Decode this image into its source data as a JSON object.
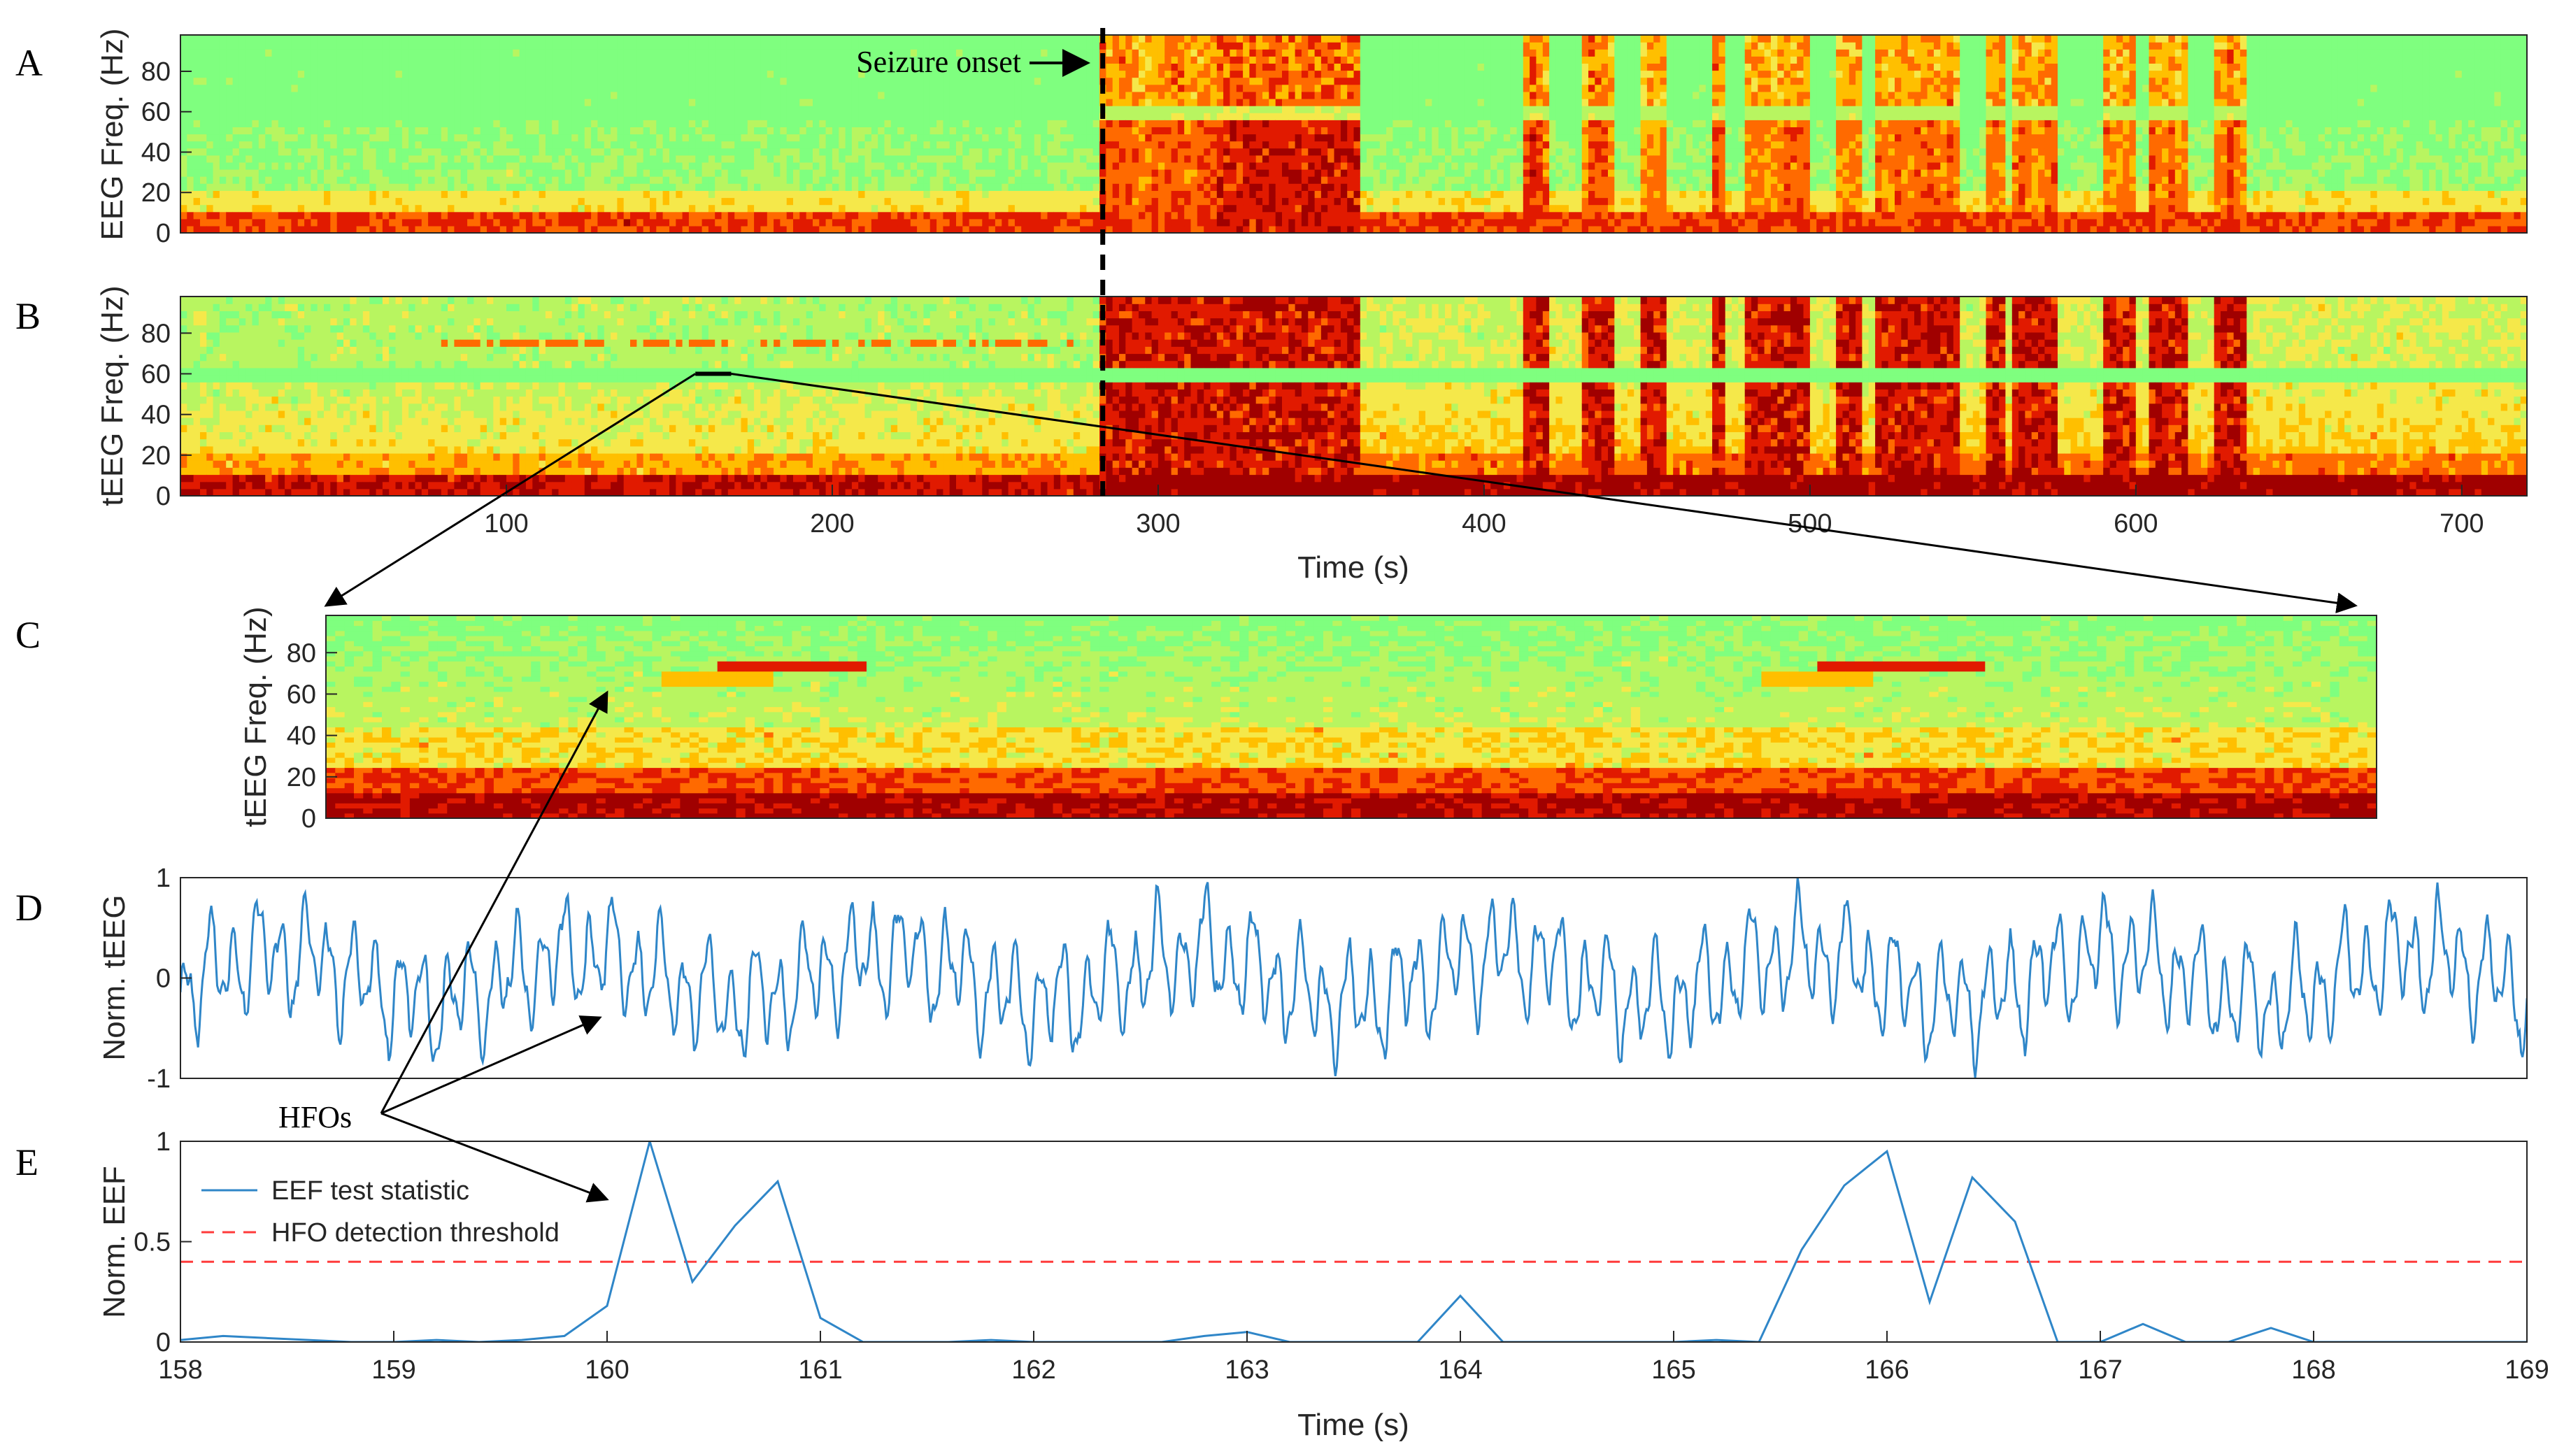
{
  "chart_data": [
    {
      "panel": "A",
      "type": "heatmap",
      "ylabel": "EEG Freq. (Hz)",
      "xlim": [
        0,
        720
      ],
      "ylim": [
        0,
        98
      ],
      "yticks": [
        "0",
        "20",
        "40",
        "60",
        "80"
      ],
      "ytick_values": [
        0,
        20,
        40,
        60,
        80
      ],
      "colormap": [
        "#7fff7f",
        "#b8f560",
        "#f5e84a",
        "#ffbf00",
        "#ff6a00",
        "#e11a00",
        "#a00000"
      ],
      "grid": false
    },
    {
      "panel": "B",
      "type": "heatmap",
      "ylabel": "tEEG Freq. (Hz)",
      "xlabel": "Time (s)",
      "xlim": [
        0,
        720
      ],
      "ylim": [
        0,
        98
      ],
      "xticks": [
        "100",
        "200",
        "300",
        "400",
        "500",
        "600",
        "700"
      ],
      "xtick_values": [
        100,
        200,
        300,
        400,
        500,
        600,
        700
      ],
      "yticks": [
        "0",
        "20",
        "40",
        "60",
        "80"
      ],
      "ytick_values": [
        0,
        20,
        40,
        60,
        80
      ],
      "seizure_onset_s": 283,
      "zoom_window_s": [
        158,
        169
      ],
      "grid": false
    },
    {
      "panel": "C",
      "type": "heatmap",
      "ylabel": "tEEG Freq. (Hz)",
      "xlim": [
        158,
        169
      ],
      "ylim": [
        0,
        98
      ],
      "yticks": [
        "0",
        "20",
        "40",
        "60",
        "80"
      ],
      "ytick_values": [
        0,
        20,
        40,
        60,
        80
      ],
      "hfo_bands": [
        {
          "t_start": 160.1,
          "t_end": 160.9,
          "freq_hz": 74
        },
        {
          "t_start": 166.0,
          "t_end": 166.9,
          "freq_hz": 74
        }
      ],
      "grid": false
    },
    {
      "panel": "D",
      "type": "line",
      "ylabel": "Norm. tEEG",
      "xlim": [
        158,
        169
      ],
      "ylim": [
        -1,
        1
      ],
      "yticks": [
        "-1",
        "0",
        "1"
      ],
      "ytick_values": [
        -1,
        0,
        1
      ],
      "series_color": "#2f86c8",
      "grid": false
    },
    {
      "panel": "E",
      "type": "line",
      "ylabel": "Norm. EEF",
      "xlabel": "Time (s)",
      "xlim": [
        158,
        169
      ],
      "ylim": [
        0,
        1
      ],
      "xticks": [
        "158",
        "159",
        "160",
        "161",
        "162",
        "163",
        "164",
        "165",
        "166",
        "167",
        "168",
        "169"
      ],
      "xtick_values": [
        158,
        159,
        160,
        161,
        162,
        163,
        164,
        165,
        166,
        167,
        168,
        169
      ],
      "yticks": [
        "0",
        "0.5",
        "1"
      ],
      "ytick_values": [
        0,
        0.5,
        1
      ],
      "legend_placement": "top-left",
      "grid": false,
      "series": [
        {
          "name": "EEF test statistic",
          "color": "#2f86c8",
          "x": [
            158.0,
            158.2,
            158.4,
            158.6,
            158.8,
            159.0,
            159.2,
            159.4,
            159.6,
            159.8,
            160.0,
            160.2,
            160.4,
            160.6,
            160.8,
            161.0,
            161.2,
            161.4,
            161.6,
            161.8,
            162.0,
            162.2,
            162.4,
            162.6,
            162.8,
            163.0,
            163.2,
            163.4,
            163.6,
            163.8,
            164.0,
            164.2,
            164.4,
            164.6,
            164.8,
            165.0,
            165.2,
            165.4,
            165.6,
            165.8,
            166.0,
            166.2,
            166.4,
            166.6,
            166.8,
            167.0,
            167.2,
            167.4,
            167.6,
            167.8,
            168.0,
            168.2,
            168.4,
            168.6,
            168.8,
            169.0
          ],
          "values": [
            0.01,
            0.03,
            0.02,
            0.01,
            0.0,
            0.0,
            0.01,
            0.0,
            0.01,
            0.03,
            0.18,
            1.0,
            0.3,
            0.58,
            0.8,
            0.12,
            0.0,
            0.0,
            0.0,
            0.01,
            0.0,
            0.0,
            0.0,
            0.0,
            0.03,
            0.05,
            0.0,
            0.0,
            0.0,
            0.0,
            0.23,
            0.0,
            0.0,
            0.0,
            0.0,
            0.0,
            0.01,
            0.0,
            0.46,
            0.78,
            0.95,
            0.2,
            0.82,
            0.6,
            0.0,
            0.0,
            0.09,
            0.0,
            0.0,
            0.07,
            0.0,
            0.0,
            0.0,
            0.0,
            0.0,
            0.0
          ]
        },
        {
          "name": "HFO detection threshold",
          "color": "#ff3b3b",
          "style": "dashed",
          "x": [
            158,
            169
          ],
          "values": [
            0.4,
            0.4
          ]
        }
      ]
    }
  ],
  "annotations": {
    "panel_letters": [
      "A",
      "B",
      "C",
      "D",
      "E"
    ],
    "seizure_onset_label": "Seizure onset",
    "hfos_label": "HFOs"
  }
}
